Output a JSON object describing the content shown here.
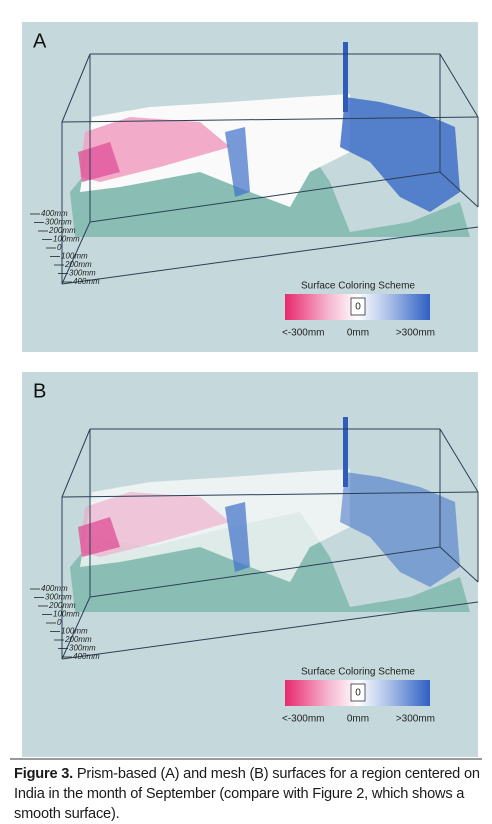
{
  "panels": [
    {
      "label": "A",
      "axis_labels": [
        "400mm",
        "300mm",
        "200mm",
        "100mm",
        "0",
        "100mm",
        "200mm",
        "300mm",
        "400mm"
      ],
      "legend": {
        "title": "Surface Coloring Scheme",
        "center": "0",
        "left": "<-300mm",
        "middle": "0mm",
        "right": ">300mm"
      }
    },
    {
      "label": "B",
      "axis_labels": [
        "400mm",
        "300mm",
        "200mm",
        "100mm",
        "0",
        "100mm",
        "200mm",
        "300mm",
        "400mm"
      ],
      "legend": {
        "title": "Surface Coloring Scheme",
        "center": "0",
        "left": "<-300mm",
        "middle": "0mm",
        "right": ">300mm"
      }
    }
  ],
  "caption": {
    "label": "Figure 3.",
    "text": "Prism-based (A) and mesh (B) surfaces for a region centered on India in the month of September (compare with Figure 2, which shows a smooth surface)."
  }
}
